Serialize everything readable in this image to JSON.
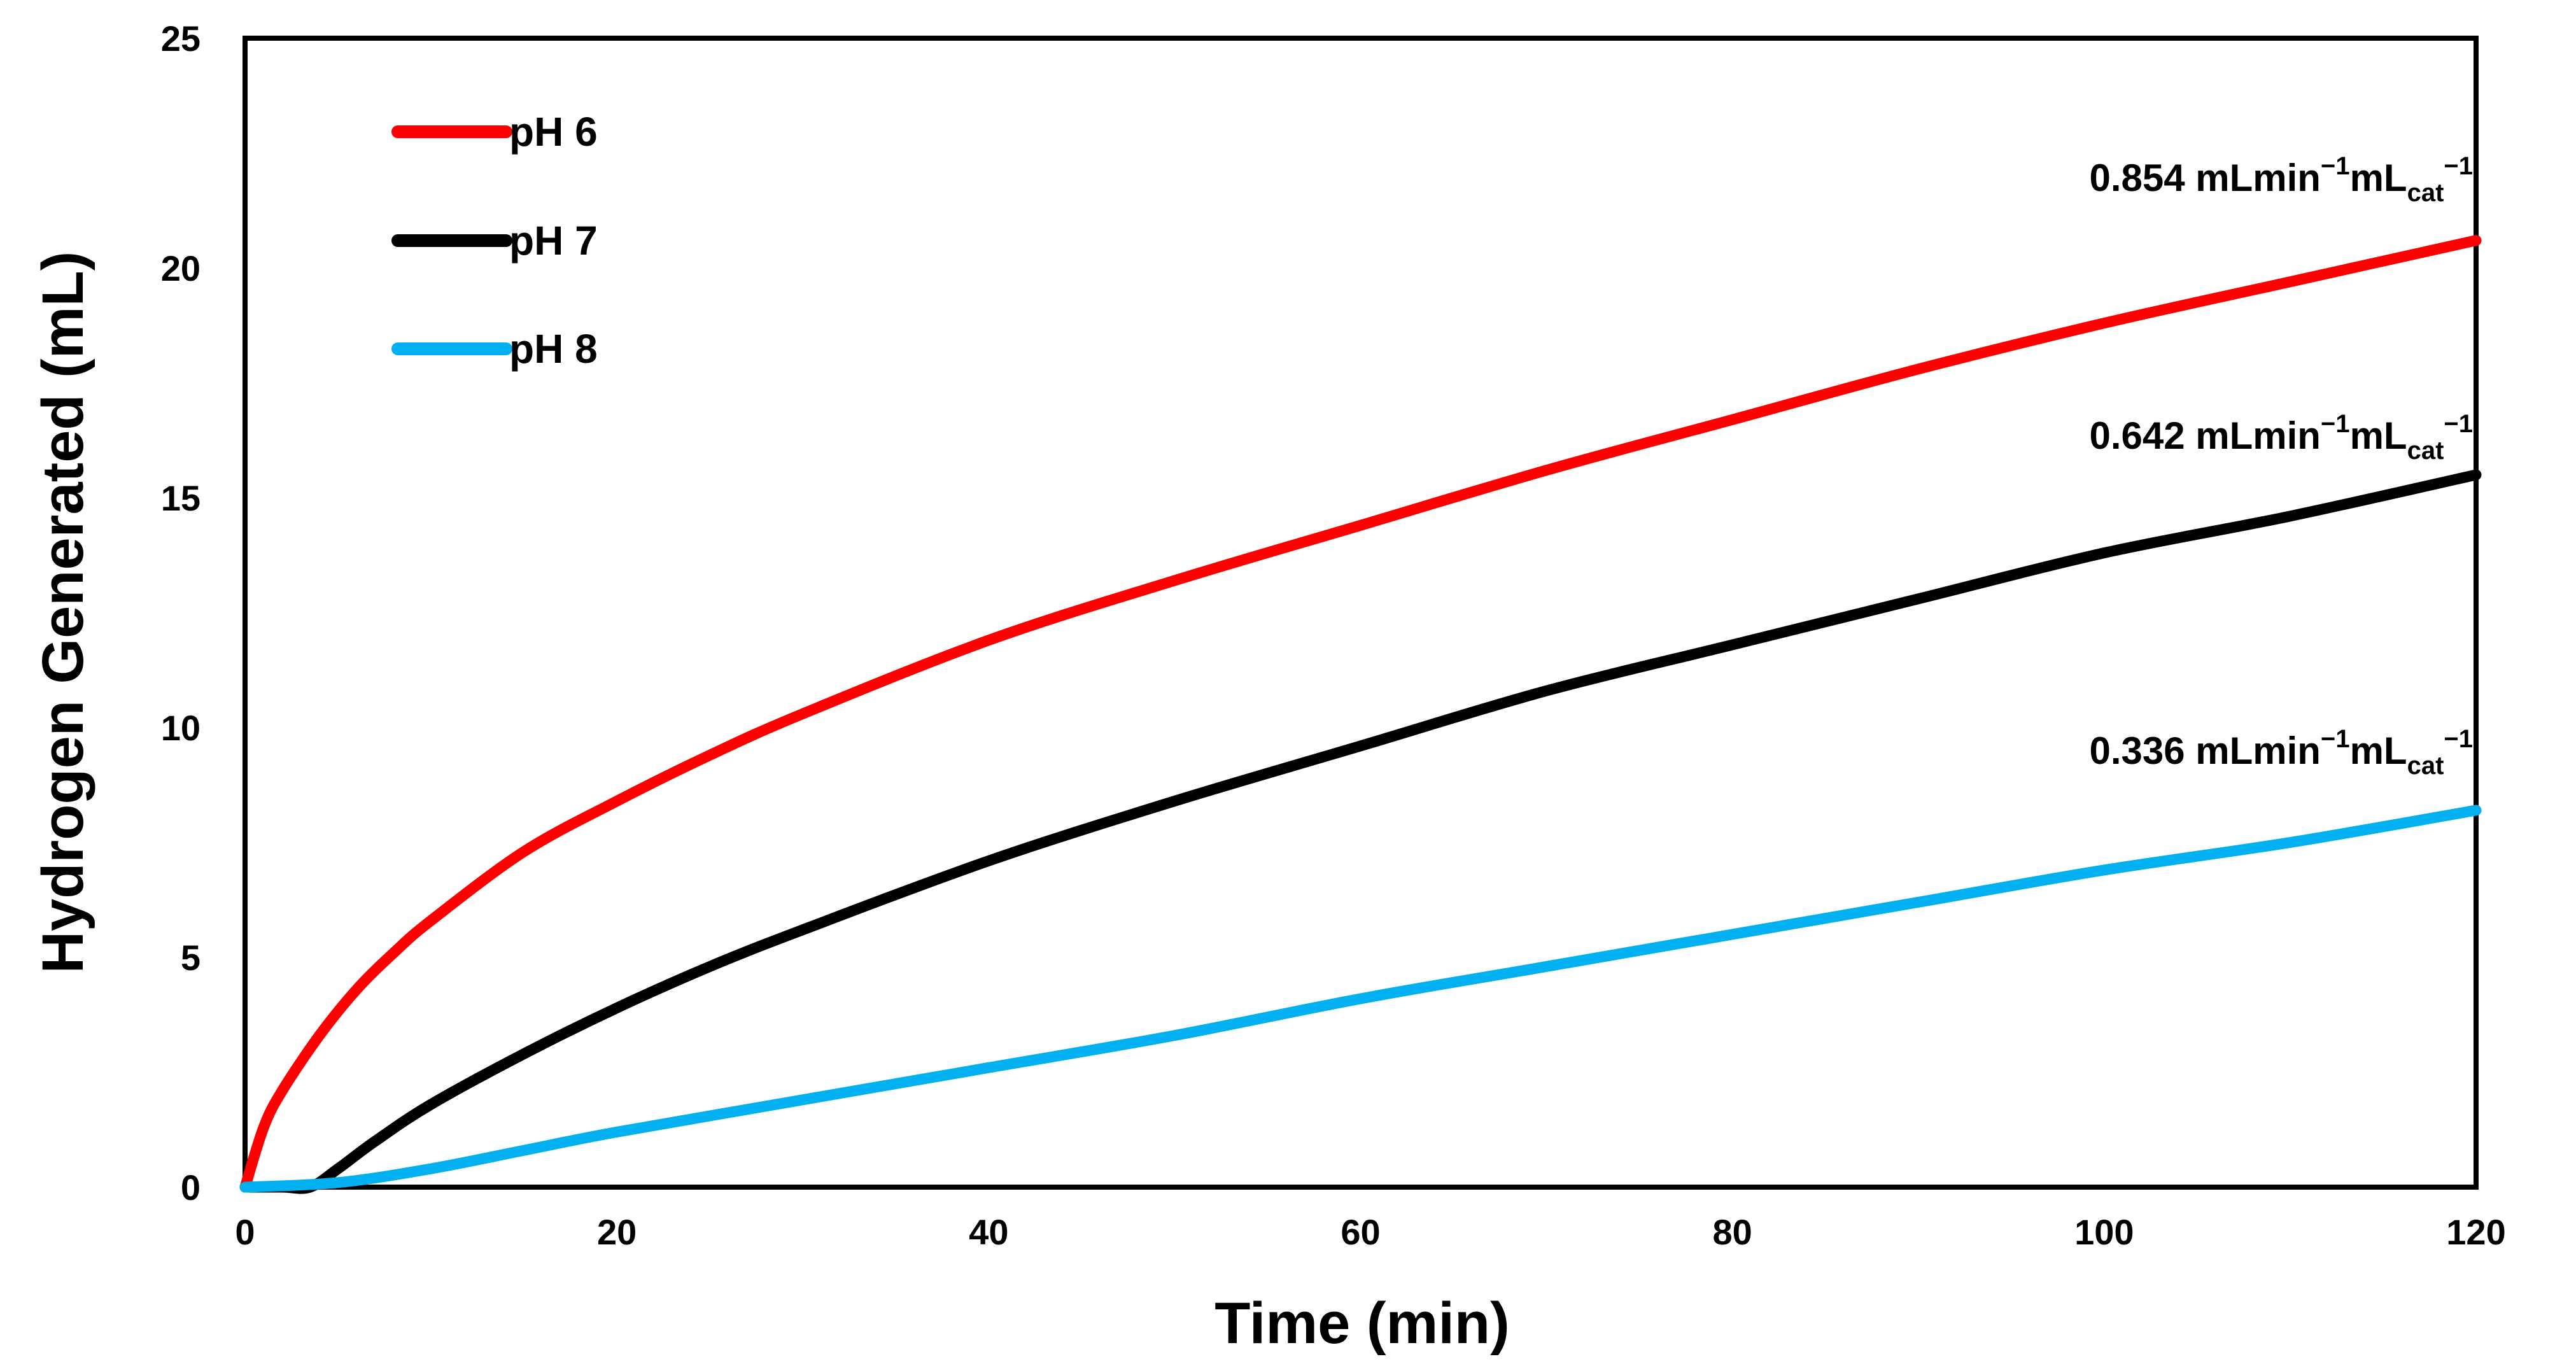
{
  "chart_data": {
    "type": "line",
    "title": "",
    "xlabel": "Time (min)",
    "ylabel": "Hydrogen Generated (mL)",
    "xlim": [
      0,
      120
    ],
    "ylim": [
      0,
      25
    ],
    "xticks": [
      0,
      20,
      40,
      60,
      80,
      100,
      120
    ],
    "yticks": [
      0,
      5,
      10,
      15,
      20,
      25
    ],
    "grid": false,
    "legend_position": "top-left",
    "series": [
      {
        "name": "pH 6",
        "color": "#ff0000",
        "x": [
          0,
          1,
          2,
          4,
          6,
          8,
          10,
          15,
          20,
          25,
          30,
          40,
          50,
          60,
          70,
          80,
          90,
          100,
          110,
          120
        ],
        "y": [
          0,
          1.3,
          2.1,
          3.3,
          4.3,
          5.1,
          5.8,
          7.3,
          8.4,
          9.4,
          10.3,
          11.9,
          13.2,
          14.4,
          15.6,
          16.7,
          17.8,
          18.8,
          19.7,
          20.6
        ],
        "annotation": {
          "value": "0.854",
          "unit": "mLmin",
          "exp1": "−1",
          "unit2": "mL",
          "sub": "cat",
          "exp2": "−1"
        }
      },
      {
        "name": "pH 7",
        "color": "#000000",
        "x": [
          0,
          2,
          3.5,
          5,
          7,
          10,
          15,
          20,
          25,
          30,
          40,
          50,
          60,
          70,
          80,
          90,
          100,
          110,
          120
        ],
        "y": [
          0,
          0,
          0,
          0.4,
          1,
          1.8,
          2.9,
          3.9,
          4.8,
          5.6,
          7.1,
          8.4,
          9.6,
          10.8,
          11.8,
          12.8,
          13.8,
          14.6,
          15.5
        ],
        "annotation": {
          "value": "0.642",
          "unit": "mLmin",
          "exp1": "−1",
          "unit2": "mL",
          "sub": "cat",
          "exp2": "−1"
        }
      },
      {
        "name": "pH 8",
        "color": "#00b0f0",
        "x": [
          0,
          5,
          10,
          15,
          20,
          30,
          40,
          50,
          60,
          70,
          80,
          90,
          100,
          110,
          120
        ],
        "y": [
          0,
          0.1,
          0.4,
          0.8,
          1.2,
          1.9,
          2.6,
          3.3,
          4.1,
          4.8,
          5.5,
          6.2,
          6.9,
          7.5,
          8.2
        ],
        "annotation": {
          "value": "0.336",
          "unit": "mLmin",
          "exp1": "−1",
          "unit2": "mL",
          "sub": "cat",
          "exp2": "−1"
        }
      }
    ]
  }
}
